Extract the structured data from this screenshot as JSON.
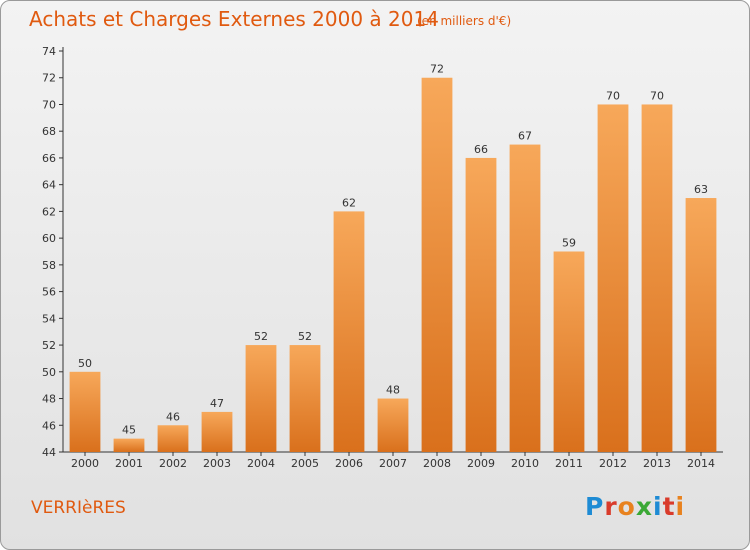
{
  "title": "Achats et Charges Externes 2000 à 2014",
  "subtitle": "(en milliers d'€)",
  "commune": "VERRIèRES",
  "logo_text": "Proxiti",
  "colors": {
    "title": "#e05a10",
    "bar_top": "#f7a85a",
    "bar_bottom": "#d9701c",
    "axis": "#333333",
    "grid": "#c8c8c8"
  },
  "chart_data": {
    "type": "bar",
    "title": "Achats et Charges Externes 2000 à 2014",
    "xlabel": "",
    "ylabel": "",
    "categories": [
      "2000",
      "2001",
      "2002",
      "2003",
      "2004",
      "2005",
      "2006",
      "2007",
      "2008",
      "2009",
      "2010",
      "2011",
      "2012",
      "2013",
      "2014"
    ],
    "values": [
      50,
      45,
      46,
      47,
      52,
      52,
      62,
      48,
      72,
      66,
      67,
      59,
      70,
      70,
      63
    ],
    "ylim": [
      44,
      74
    ],
    "yticks": [
      44,
      46,
      48,
      50,
      52,
      54,
      56,
      58,
      60,
      62,
      64,
      66,
      68,
      70,
      72,
      74
    ],
    "grid": false
  }
}
